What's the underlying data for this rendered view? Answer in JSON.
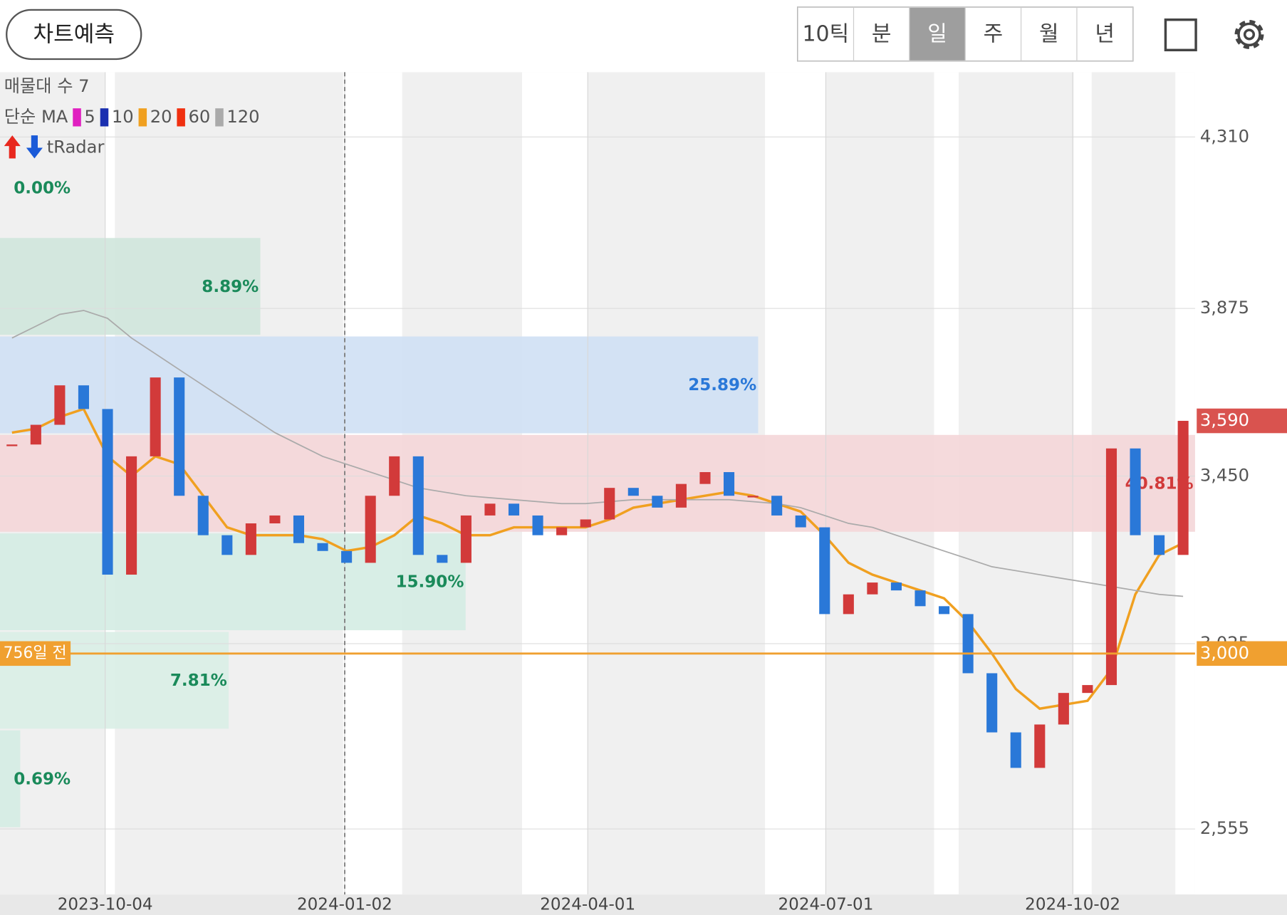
{
  "header": {
    "button": "차트예측",
    "tabs": [
      "10틱",
      "분",
      "일",
      "주",
      "월",
      "년"
    ],
    "selected_tab": 2
  },
  "legend": {
    "volume_profile": "매물대 수 7",
    "ma_title": "단순 MA",
    "ma_periods": [
      {
        "label": "5",
        "color": "#e020c0"
      },
      {
        "label": "10",
        "color": "#1a2fb0"
      },
      {
        "label": "20",
        "color": "#f0a020"
      },
      {
        "label": "60",
        "color": "#f03010"
      },
      {
        "label": "120",
        "color": "#aaaaaa"
      }
    ],
    "radar": "tRadar"
  },
  "chart_data": {
    "type": "candlestick",
    "close": [
      3530,
      3580,
      3680,
      3620,
      3200,
      3500,
      3700,
      3400,
      3300,
      3250,
      3330,
      3350,
      3280,
      3260,
      3230,
      3400,
      3500,
      3250,
      3230,
      3350,
      3380,
      3350,
      3300,
      3320,
      3340,
      3420,
      3400,
      3370,
      3430,
      3460,
      3400,
      3400,
      3350,
      3320,
      3100,
      3150,
      3180,
      3160,
      3120,
      3100,
      2950,
      2800,
      2710,
      2820,
      2900,
      2920,
      3520,
      3300,
      3250,
      3590
    ],
    "up_color": "#d23a3a",
    "down_color": "#2a78d8",
    "series": [
      {
        "color": "#f0a020",
        "values": [
          3560,
          3570,
          3600,
          3620,
          3500,
          3450,
          3500,
          3480,
          3400,
          3320,
          3300,
          3300,
          3300,
          3290,
          3260,
          3270,
          3300,
          3350,
          3330,
          3300,
          3300,
          3320,
          3320,
          3320,
          3320,
          3340,
          3370,
          3380,
          3390,
          3400,
          3410,
          3400,
          3380,
          3360,
          3300,
          3230,
          3200,
          3180,
          3160,
          3140,
          3080,
          3000,
          2910,
          2860,
          2870,
          2880,
          2960,
          3150,
          3250,
          3280
        ]
      },
      {
        "color": "#aaaaaa",
        "values": [
          3800,
          3830,
          3860,
          3870,
          3850,
          3800,
          3760,
          3720,
          3680,
          3640,
          3600,
          3560,
          3530,
          3500,
          3480,
          3460,
          3440,
          3420,
          3410,
          3400,
          3395,
          3390,
          3385,
          3380,
          3380,
          3385,
          3390,
          3390,
          3390,
          3390,
          3390,
          3385,
          3380,
          3370,
          3350,
          3330,
          3320,
          3300,
          3280,
          3260,
          3240,
          3220,
          3210,
          3200,
          3190,
          3180,
          3170,
          3160,
          3150,
          3145
        ]
      }
    ],
    "xlim": [
      -0.5,
      49.5
    ],
    "xticks": [
      {
        "value": 3.9,
        "label": "2023-10-04"
      },
      {
        "value": 13.92,
        "label": "2024-01-02"
      },
      {
        "value": 24.09,
        "label": "2024-04-01"
      },
      {
        "value": 34.05,
        "label": "2024-07-01"
      },
      {
        "value": 44.38,
        "label": "2024-10-02"
      }
    ],
    "ylim": [
      2389,
      4474
    ],
    "yticks": [
      {
        "value": 4310,
        "label": "4,310"
      },
      {
        "value": 3875,
        "label": "3,875"
      },
      {
        "value": 3450,
        "label": "3,450"
      },
      {
        "value": 3025,
        "label": "3,025"
      },
      {
        "value": 2555,
        "label": "2,555"
      }
    ],
    "grid": true,
    "last_price": {
      "value": 3590,
      "label": "3,590",
      "color": "#d9534f"
    },
    "reference": {
      "value": 3000,
      "label": "3,000",
      "days_label": "756일 전",
      "color": "#f0a030"
    },
    "volume_profile": [
      {
        "value": 0,
        "label": "0.00%",
        "color": "#1a8a5a",
        "fill": "#cfe6dc"
      },
      {
        "value": 8.89,
        "label": "8.89%",
        "color": "#1a8a5a",
        "fill": "#cfe6dc"
      },
      {
        "value": 25.89,
        "label": "25.89%",
        "color": "#2a78d8",
        "fill": "#cfe0f4"
      },
      {
        "value": 40.81,
        "label": "40.81%",
        "color": "#d23a3a",
        "fill": "#f4d6d8"
      },
      {
        "value": 15.9,
        "label": "15.90%",
        "color": "#1a8a5a",
        "fill": "#d4ece3"
      },
      {
        "value": 7.81,
        "label": "7.81%",
        "color": "#1a8a5a",
        "fill": "#d9eee6"
      },
      {
        "value": 0.69,
        "label": "0.69%",
        "color": "#1a8a5a",
        "fill": "#d4ece3"
      }
    ],
    "volume_profile_max": 40.81
  }
}
